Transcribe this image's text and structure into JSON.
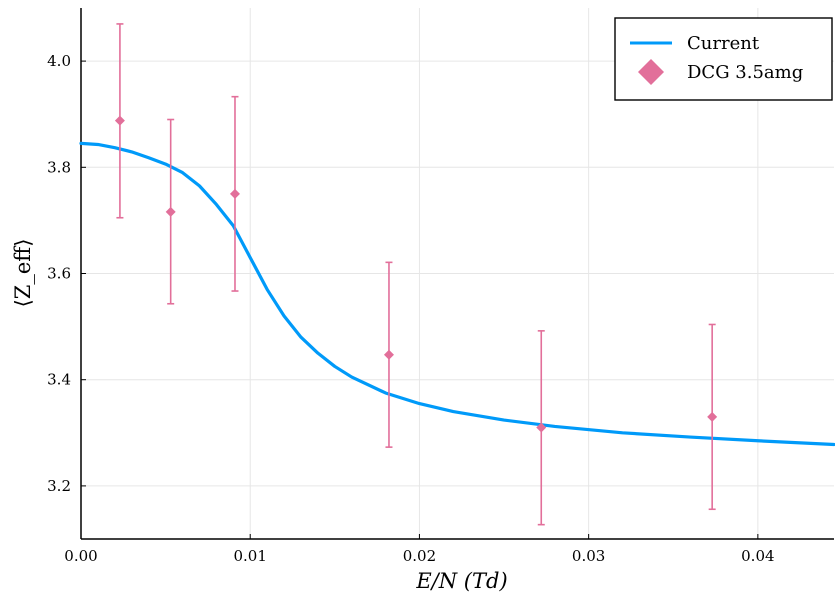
{
  "chart_data": {
    "type": "line",
    "xlabel": "E/N (Td)",
    "ylabel": "⟨Z_eff⟩",
    "xlim": [
      0,
      0.0445
    ],
    "ylim": [
      3.1,
      4.1
    ],
    "xticks": [
      0.0,
      0.01,
      0.02,
      0.03,
      0.04
    ],
    "xtick_labels": [
      "0.00",
      "0.01",
      "0.02",
      "0.03",
      "0.04"
    ],
    "yticks": [
      3.2,
      3.4,
      3.6,
      3.8,
      4.0
    ],
    "ytick_labels": [
      "3.2",
      "3.4",
      "3.6",
      "3.8",
      "4.0"
    ],
    "grid": true,
    "legend_position": "top-right",
    "series": [
      {
        "name": "Current",
        "kind": "line",
        "color": "#009af9",
        "x": [
          0.0,
          0.001,
          0.002,
          0.003,
          0.004,
          0.005,
          0.006,
          0.007,
          0.008,
          0.009,
          0.01,
          0.011,
          0.012,
          0.013,
          0.014,
          0.015,
          0.016,
          0.018,
          0.02,
          0.022,
          0.025,
          0.028,
          0.032,
          0.036,
          0.04,
          0.0445
        ],
        "y": [
          3.845,
          3.843,
          3.837,
          3.829,
          3.818,
          3.806,
          3.79,
          3.765,
          3.73,
          3.69,
          3.63,
          3.57,
          3.52,
          3.48,
          3.45,
          3.425,
          3.405,
          3.375,
          3.355,
          3.34,
          3.324,
          3.312,
          3.3,
          3.292,
          3.285,
          3.278
        ]
      },
      {
        "name": "DCG 3.5amg",
        "kind": "scatter",
        "marker": "diamond",
        "color": "#e26f9a",
        "x": [
          0.0023,
          0.0053,
          0.0091,
          0.0182,
          0.0272,
          0.0373
        ],
        "y": [
          3.888,
          3.716,
          3.75,
          3.447,
          3.31,
          3.33
        ],
        "err_low": [
          3.705,
          3.543,
          3.567,
          3.273,
          3.127,
          3.156
        ],
        "err_high": [
          4.07,
          3.89,
          3.933,
          3.621,
          3.492,
          3.504
        ]
      }
    ]
  }
}
